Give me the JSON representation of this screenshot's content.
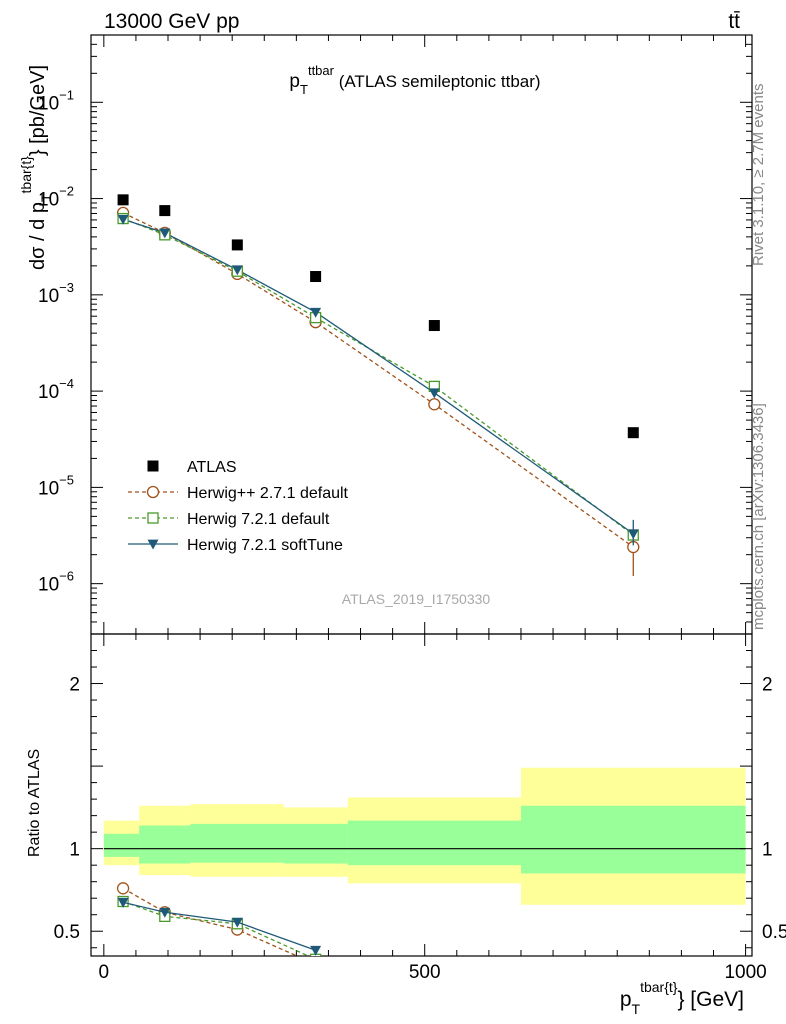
{
  "header": {
    "left": "13000 GeV pp",
    "right": "tt̄"
  },
  "side_labels": {
    "rivet": "Rivet 3.1.10, ≥ 2.7M events",
    "mcplots": "mcplots.cern.ch [arXiv:1306.3436]"
  },
  "watermark": "ATLAS_2019_I1750330",
  "title": {
    "main": "p",
    "sub": "T",
    "sup": "ttbar",
    "rest": " (ATLAS semileptonic ttbar)"
  },
  "colors": {
    "data": "#000000",
    "herwigpp": "#a0521a",
    "herwig721": "#4a9a2a",
    "softtune": "#1e5a78",
    "band_yellow": "#ffff99",
    "band_green": "#99ff99"
  },
  "chart_data": [
    {
      "type": "scatter",
      "name": "main",
      "ylog": true,
      "ylim": [
        3e-07,
        0.5
      ],
      "xlim": [
        -20,
        1010
      ],
      "ylabel": {
        "a": "dσ / d p",
        "sub": "T",
        "sup": "tbar{t}",
        "b": "} [pb/GeV]"
      },
      "ytick_labels": [
        {
          "value": 0.1,
          "mant": "10",
          "exp": "−1"
        },
        {
          "value": 0.01,
          "mant": "10",
          "exp": "−2"
        },
        {
          "value": 0.001,
          "mant": "10",
          "exp": "−3"
        },
        {
          "value": 0.0001,
          "mant": "10",
          "exp": "−4"
        },
        {
          "value": 1e-05,
          "mant": "10",
          "exp": "−5"
        },
        {
          "value": 1e-06,
          "mant": "10",
          "exp": "−6"
        }
      ],
      "legend": [
        "ATLAS",
        "Herwig++ 2.7.1 default",
        "Herwig 7.2.1 default",
        "Herwig 7.2.1 softTune"
      ],
      "series": [
        {
          "name": "ATLAS",
          "marker": "square-filled",
          "x": [
            30,
            95,
            208,
            330,
            515,
            825
          ],
          "y": [
            0.0097,
            0.0075,
            0.0033,
            0.00155,
            0.00048,
            3.7e-05
          ]
        },
        {
          "name": "Herwig++ 2.7.1 default",
          "marker": "circle-open",
          "x": [
            30,
            95,
            208,
            330,
            515,
            825
          ],
          "y": [
            0.0071,
            0.0044,
            0.00165,
            0.00052,
            7.3e-05,
            2.4e-06
          ],
          "yerr_low": [
            0,
            0,
            0,
            0,
            0,
            1.2e-06
          ],
          "yerr_high": [
            0,
            0,
            0,
            0,
            0,
            0
          ]
        },
        {
          "name": "Herwig 7.2.1 default",
          "marker": "square-open",
          "x": [
            30,
            95,
            208,
            330,
            515,
            825
          ],
          "y": [
            0.0062,
            0.0042,
            0.00176,
            0.00058,
            0.000112,
            3.2e-06
          ]
        },
        {
          "name": "Herwig 7.2.1 softTune",
          "marker": "triangle-down-filled",
          "x": [
            30,
            95,
            208,
            330,
            515,
            825
          ],
          "y": [
            0.0061,
            0.0044,
            0.00182,
            0.00066,
            9.6e-05,
            3.3e-06
          ],
          "yerr_low": [
            0,
            0,
            0,
            0,
            0,
            8e-07
          ],
          "yerr_high": [
            0,
            0,
            0,
            0,
            0,
            1.3e-06
          ]
        }
      ]
    },
    {
      "type": "line",
      "name": "ratio",
      "ylabel": "Ratio to ATLAS",
      "xlabel": {
        "a": "p",
        "sub": "T",
        "sup": "tbar{t}",
        "b": "} [GeV]"
      },
      "xlim": [
        -20,
        1010
      ],
      "ylim": [
        0.35,
        2.3
      ],
      "xtick_labels": [
        {
          "value": 0,
          "label": "0"
        },
        {
          "value": 500,
          "label": "500"
        },
        {
          "value": 1000,
          "label": "1000"
        }
      ],
      "ytick_labels": [
        {
          "value": 0.5,
          "label": "0.5"
        },
        {
          "value": 1,
          "label": "1"
        },
        {
          "value": 2,
          "label": "2"
        }
      ],
      "bands": [
        {
          "x0": 0,
          "x1": 55,
          "yellow": [
            0.9,
            1.17
          ],
          "green": [
            0.95,
            1.09
          ]
        },
        {
          "x0": 55,
          "x1": 135,
          "yellow": [
            0.84,
            1.26
          ],
          "green": [
            0.91,
            1.14
          ]
        },
        {
          "x0": 135,
          "x1": 280,
          "yellow": [
            0.83,
            1.27
          ],
          "green": [
            0.915,
            1.15
          ]
        },
        {
          "x0": 280,
          "x1": 380,
          "yellow": [
            0.83,
            1.25
          ],
          "green": [
            0.91,
            1.15
          ]
        },
        {
          "x0": 380,
          "x1": 650,
          "yellow": [
            0.79,
            1.31
          ],
          "green": [
            0.9,
            1.17
          ]
        },
        {
          "x0": 650,
          "x1": 1000,
          "yellow": [
            0.66,
            1.49
          ],
          "green": [
            0.85,
            1.26
          ]
        }
      ],
      "series": [
        {
          "name": "Herwig++ 2.7.1 default",
          "x": [
            30,
            95,
            208,
            330
          ],
          "y": [
            0.76,
            0.615,
            0.51,
            0.3
          ]
        },
        {
          "name": "Herwig 7.2.1 default",
          "x": [
            30,
            95,
            208,
            330
          ],
          "y": [
            0.68,
            0.59,
            0.545,
            0.33
          ]
        },
        {
          "name": "Herwig 7.2.1 softTune",
          "x": [
            30,
            95,
            208,
            330
          ],
          "y": [
            0.675,
            0.615,
            0.555,
            0.385
          ],
          "yerr": [
            0,
            0,
            0,
            0.02
          ]
        }
      ]
    }
  ]
}
